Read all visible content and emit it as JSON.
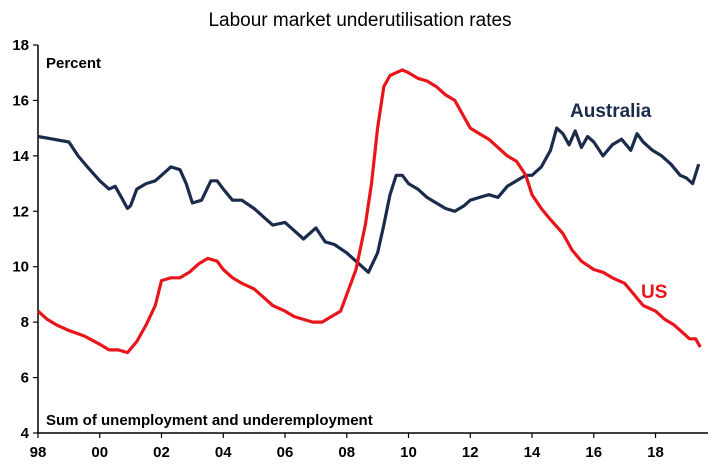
{
  "chart_data": {
    "type": "line",
    "title": "Labour market underutilisation rates",
    "ylabel": "Percent",
    "annotation": "Sum of unemployment and underemployment",
    "ylim": [
      4,
      18
    ],
    "xlim": [
      1998,
      2019.7
    ],
    "y_ticks": [
      "4",
      "6",
      "8",
      "10",
      "12",
      "14",
      "16",
      "18"
    ],
    "x_ticks": [
      {
        "year": 1998,
        "label": "98"
      },
      {
        "year": 2000,
        "label": "00"
      },
      {
        "year": 2002,
        "label": "02"
      },
      {
        "year": 2004,
        "label": "04"
      },
      {
        "year": 2006,
        "label": "06"
      },
      {
        "year": 2008,
        "label": "08"
      },
      {
        "year": 2010,
        "label": "10"
      },
      {
        "year": 2012,
        "label": "12"
      },
      {
        "year": 2014,
        "label": "14"
      },
      {
        "year": 2016,
        "label": "16"
      },
      {
        "year": 2018,
        "label": "18"
      }
    ],
    "grid": false,
    "legend": "inline labels",
    "series": [
      {
        "name": "Australia",
        "color": "#1b2b4b",
        "x": [
          1998.0,
          1998.5,
          1999.0,
          1999.3,
          1999.6,
          2000.0,
          2000.3,
          2000.5,
          2000.7,
          2000.9,
          2001.0,
          2001.2,
          2001.5,
          2001.8,
          2002.0,
          2002.3,
          2002.6,
          2002.8,
          2003.0,
          2003.3,
          2003.6,
          2003.8,
          2004.0,
          2004.3,
          2004.6,
          2005.0,
          2005.3,
          2005.6,
          2006.0,
          2006.3,
          2006.6,
          2007.0,
          2007.3,
          2007.6,
          2008.0,
          2008.3,
          2008.5,
          2008.7,
          2009.0,
          2009.2,
          2009.4,
          2009.6,
          2009.8,
          2010.0,
          2010.3,
          2010.6,
          2010.9,
          2011.2,
          2011.5,
          2011.8,
          2012.0,
          2012.3,
          2012.6,
          2012.9,
          2013.2,
          2013.5,
          2013.8,
          2014.0,
          2014.3,
          2014.6,
          2014.8,
          2015.0,
          2015.2,
          2015.4,
          2015.6,
          2015.8,
          2016.0,
          2016.3,
          2016.6,
          2016.9,
          2017.2,
          2017.4,
          2017.6,
          2017.9,
          2018.2,
          2018.5,
          2018.8,
          2019.0,
          2019.2,
          2019.4
        ],
        "values": [
          14.7,
          14.6,
          14.5,
          14.0,
          13.6,
          13.1,
          12.8,
          12.9,
          12.5,
          12.1,
          12.2,
          12.8,
          13.0,
          13.1,
          13.3,
          13.6,
          13.5,
          13.0,
          12.3,
          12.4,
          13.1,
          13.1,
          12.8,
          12.4,
          12.4,
          12.1,
          11.8,
          11.5,
          11.6,
          11.3,
          11.0,
          11.4,
          10.9,
          10.8,
          10.5,
          10.2,
          10.0,
          9.8,
          10.5,
          11.5,
          12.6,
          13.3,
          13.3,
          13.0,
          12.8,
          12.5,
          12.3,
          12.1,
          12.0,
          12.2,
          12.4,
          12.5,
          12.6,
          12.5,
          12.9,
          13.1,
          13.3,
          13.3,
          13.6,
          14.2,
          15.0,
          14.8,
          14.4,
          14.9,
          14.3,
          14.7,
          14.5,
          14.0,
          14.4,
          14.6,
          14.2,
          14.8,
          14.5,
          14.2,
          14.0,
          13.7,
          13.3,
          13.2,
          13.0,
          13.7
        ]
      },
      {
        "name": "US",
        "color": "#e8161b",
        "x": [
          1998.0,
          1998.3,
          1998.6,
          1999.0,
          1999.5,
          2000.0,
          2000.3,
          2000.6,
          2000.9,
          2001.2,
          2001.5,
          2001.8,
          2002.0,
          2002.3,
          2002.6,
          2002.9,
          2003.2,
          2003.5,
          2003.8,
          2004.0,
          2004.3,
          2004.6,
          2005.0,
          2005.3,
          2005.6,
          2006.0,
          2006.3,
          2006.6,
          2006.9,
          2007.2,
          2007.5,
          2007.8,
          2008.0,
          2008.3,
          2008.6,
          2008.8,
          2009.0,
          2009.2,
          2009.4,
          2009.6,
          2009.8,
          2010.0,
          2010.3,
          2010.6,
          2010.9,
          2011.2,
          2011.5,
          2011.8,
          2012.0,
          2012.3,
          2012.6,
          2012.9,
          2013.2,
          2013.5,
          2013.8,
          2014.0,
          2014.3,
          2014.6,
          2015.0,
          2015.3,
          2015.6,
          2016.0,
          2016.3,
          2016.6,
          2017.0,
          2017.3,
          2017.6,
          2018.0,
          2018.3,
          2018.6,
          2018.9,
          2019.1,
          2019.3,
          2019.45
        ],
        "values": [
          8.4,
          8.1,
          7.9,
          7.7,
          7.5,
          7.2,
          7.0,
          7.0,
          6.9,
          7.3,
          7.9,
          8.6,
          9.5,
          9.6,
          9.6,
          9.8,
          10.1,
          10.3,
          10.2,
          9.9,
          9.6,
          9.4,
          9.2,
          8.9,
          8.6,
          8.4,
          8.2,
          8.1,
          8.0,
          8.0,
          8.2,
          8.4,
          9.0,
          9.9,
          11.5,
          13.0,
          15.0,
          16.5,
          16.9,
          17.0,
          17.1,
          17.0,
          16.8,
          16.7,
          16.5,
          16.2,
          16.0,
          15.4,
          15.0,
          14.8,
          14.6,
          14.3,
          14.0,
          13.8,
          13.3,
          12.6,
          12.1,
          11.7,
          11.2,
          10.6,
          10.2,
          9.9,
          9.8,
          9.6,
          9.4,
          9.0,
          8.6,
          8.4,
          8.1,
          7.9,
          7.6,
          7.4,
          7.4,
          7.1
        ]
      }
    ]
  }
}
